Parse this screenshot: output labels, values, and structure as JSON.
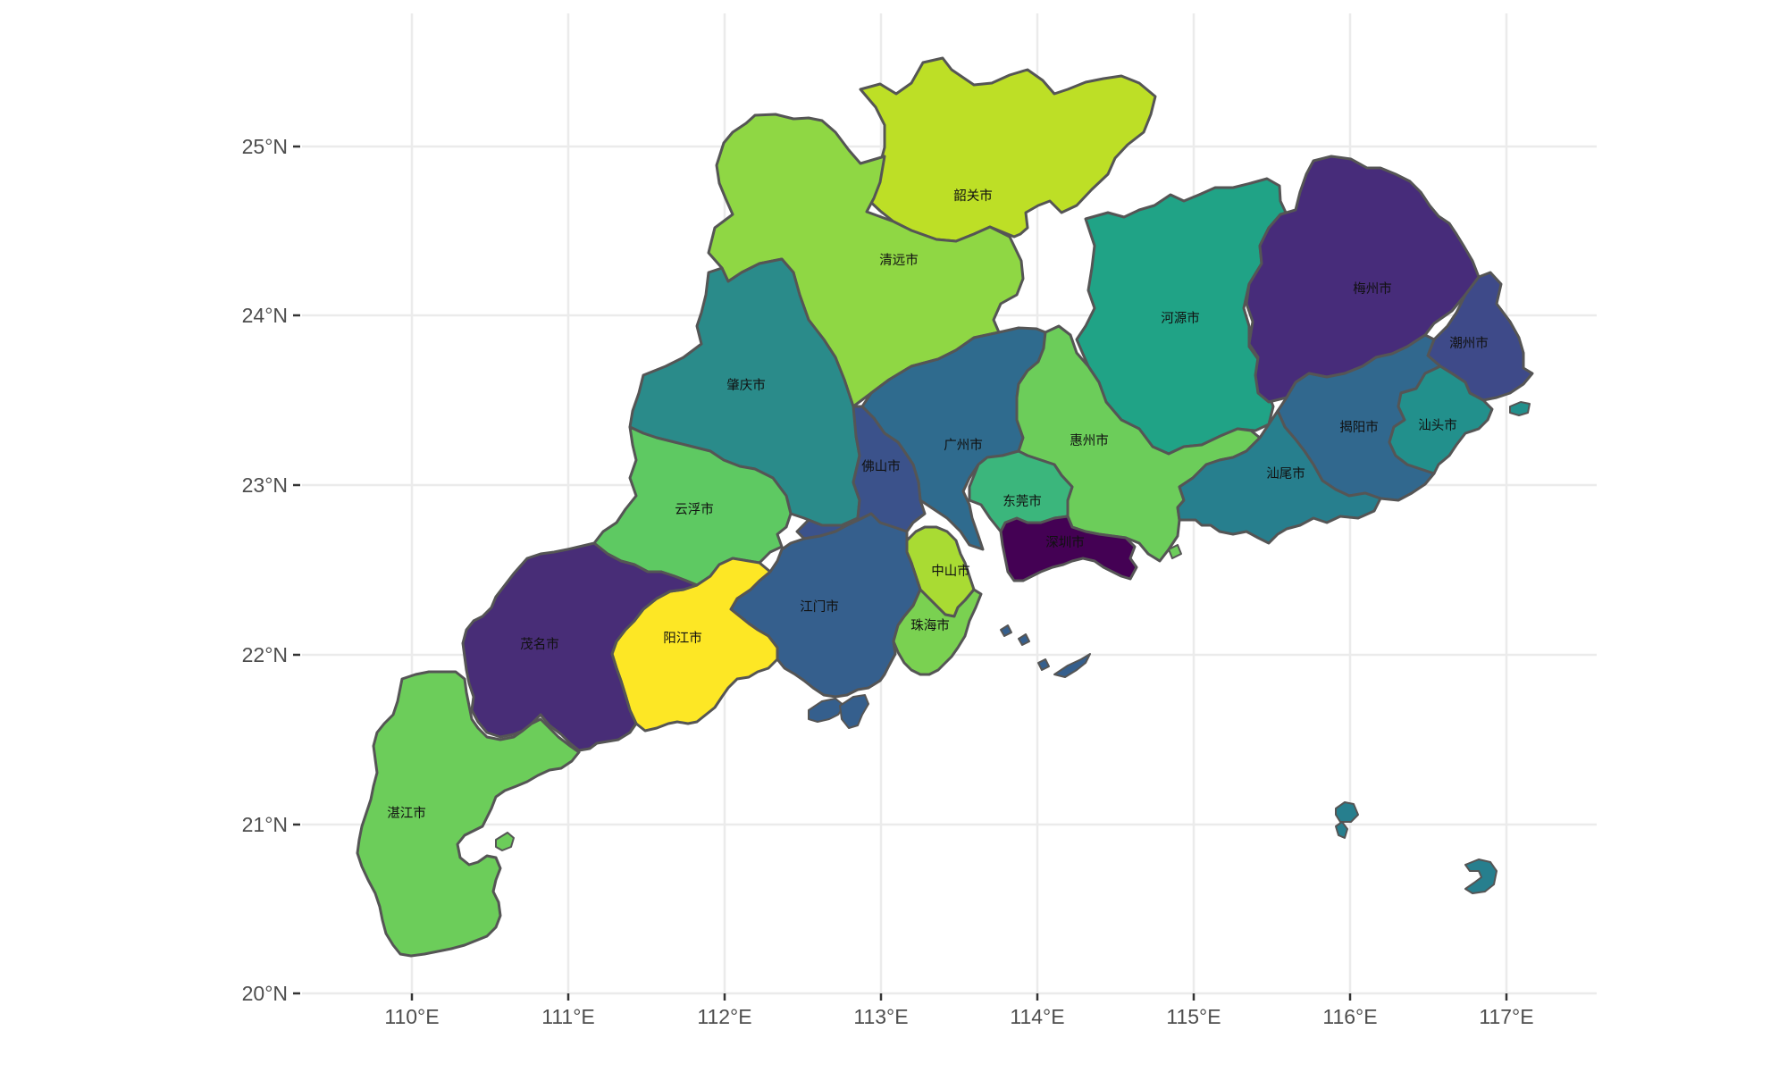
{
  "map": {
    "region": "Guangdong",
    "axes": {
      "x_ticks": [
        "110°E",
        "111°E",
        "112°E",
        "113°E",
        "114°E",
        "115°E",
        "116°E",
        "117°E"
      ],
      "y_ticks": [
        "25°N",
        "24°N",
        "23°N",
        "22°N",
        "21°N",
        "20°N"
      ]
    },
    "palette": "viridis",
    "regions": [
      {
        "name": "韶关市",
        "color": "#bddf26"
      },
      {
        "name": "清远市",
        "color": "#8fd744"
      },
      {
        "name": "河源市",
        "color": "#20a386"
      },
      {
        "name": "梅州市",
        "color": "#472c7a"
      },
      {
        "name": "潮州市",
        "color": "#3e4a89"
      },
      {
        "name": "肇庆市",
        "color": "#2a8b8a"
      },
      {
        "name": "广州市",
        "color": "#2f6b8e"
      },
      {
        "name": "惠州市",
        "color": "#6ccd5a"
      },
      {
        "name": "揭阳市",
        "color": "#31688e"
      },
      {
        "name": "汕头市",
        "color": "#22908c"
      },
      {
        "name": "佛山市",
        "color": "#3b528b"
      },
      {
        "name": "汕尾市",
        "color": "#277f8e"
      },
      {
        "name": "云浮市",
        "color": "#5ec962"
      },
      {
        "name": "东莞市",
        "color": "#3bb67c"
      },
      {
        "name": "深圳市",
        "color": "#440154"
      },
      {
        "name": "中山市",
        "color": "#a9db33"
      },
      {
        "name": "江门市",
        "color": "#355f8d"
      },
      {
        "name": "珠海市",
        "color": "#7ad151"
      },
      {
        "name": "阳江市",
        "color": "#fde725"
      },
      {
        "name": "茂名市",
        "color": "#482d77"
      },
      {
        "name": "湛江市",
        "color": "#6ccd5a"
      }
    ]
  }
}
